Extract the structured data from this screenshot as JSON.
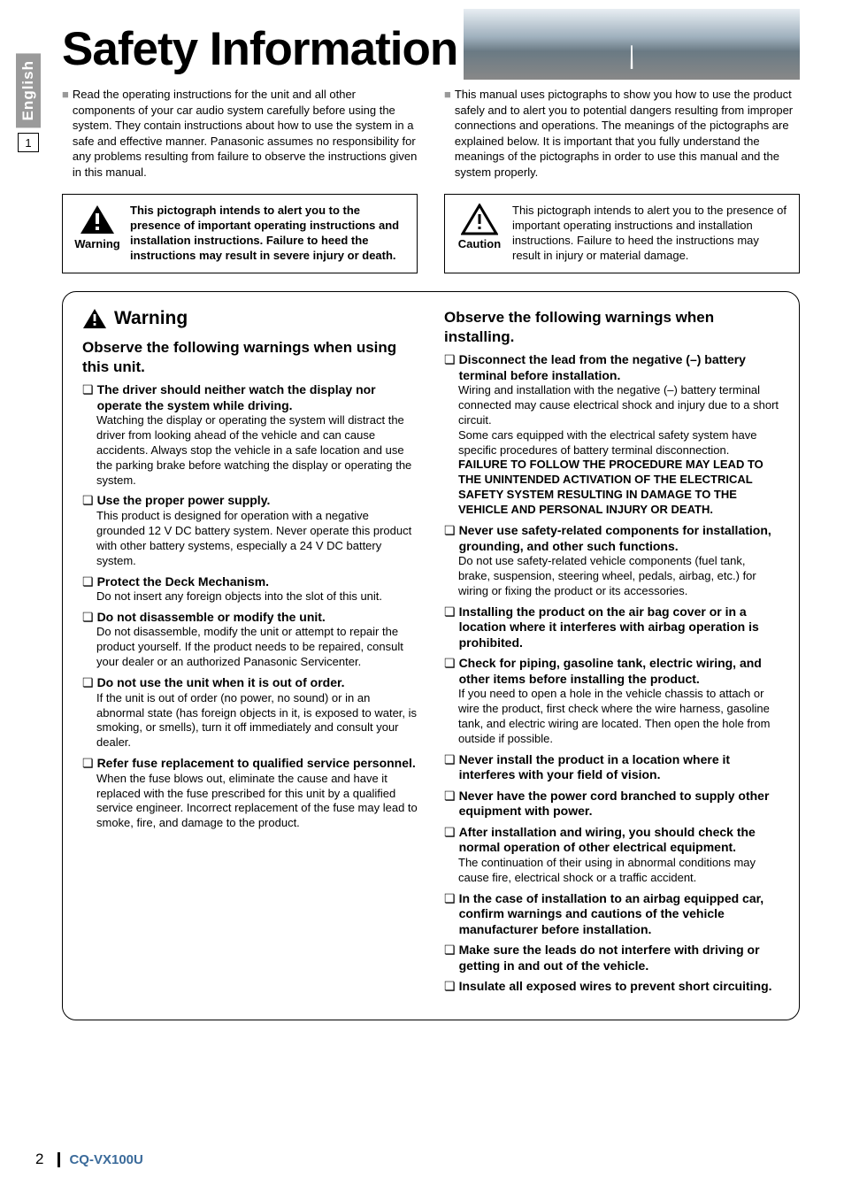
{
  "sideTab": {
    "lang": "English",
    "pageNum": "1"
  },
  "title": "Safety Information",
  "intro": {
    "left": "Read the operating instructions for the unit and all other components of your car audio system carefully before using the system. They contain instructions about how to use the system in a safe and effective manner. Panasonic assumes no responsibility for any problems resulting from failure to observe the instructions given in this manual.",
    "right": "This manual uses pictographs to show you how to use the product safely and to alert you to potential dangers resulting from improper connections and operations. The meanings of the pictographs are explained below. It is important that you fully understand the meanings of the pictographs in order to use this manual and the system properly."
  },
  "pictoWarning": {
    "label": "Warning",
    "text": "This pictograph intends to alert you to the presence of important operating instructions and installation instructions. Failure to heed the instructions may result in severe injury or death."
  },
  "pictoCaution": {
    "label": "Caution",
    "text": "This pictograph intends to alert you to the presence of important operating instructions and installation instructions. Failure to heed the instructions may result in injury or material damage."
  },
  "warningHeader": "Warning",
  "sectionUsing": {
    "heading": "Observe the following warnings when using this unit.",
    "items": [
      {
        "title": "The driver should neither watch the display nor operate the system while driving.",
        "body": "Watching the display or operating the system will distract the driver from looking ahead of the vehicle and can cause accidents. Always stop the vehicle in a safe location and use the parking brake before watching the display or operating the system."
      },
      {
        "title": "Use the proper power supply.",
        "body": "This product is designed for operation with a negative grounded 12 V DC battery system. Never operate this product with other battery systems, especially a 24 V DC battery system."
      },
      {
        "title": "Protect the Deck Mechanism.",
        "body": "Do not insert any foreign objects into the slot of this unit."
      },
      {
        "title": "Do not disassemble or modify the unit.",
        "body": "Do not disassemble, modify the unit or attempt to repair the product yourself. If the product needs to be repaired, consult your dealer or an authorized Panasonic Servicenter."
      },
      {
        "title": "Do not use the unit when it is out of order.",
        "body": "If the unit is out of order (no power, no sound) or in an abnormal state (has foreign objects in it, is exposed to water, is smoking, or smells), turn it off immediately and consult your dealer."
      },
      {
        "title": "Refer fuse replacement to qualified service personnel.",
        "body": "When the fuse blows out, eliminate the cause and have it replaced with the fuse prescribed for this unit by a qualified service engineer. Incorrect replacement of the fuse may lead to smoke, fire, and damage to the product."
      }
    ]
  },
  "sectionInstalling": {
    "heading": "Observe the following warnings when installing.",
    "items": [
      {
        "title": "Disconnect the lead from the negative (–) battery terminal before installation.",
        "body": "Wiring and installation with the negative (–) battery terminal connected may cause electrical shock and injury due to a short circuit.\nSome cars equipped with the electrical safety system have specific procedures of battery terminal disconnection.",
        "bodyBold": "FAILURE TO FOLLOW THE PROCEDURE MAY LEAD TO THE UNINTENDED ACTIVATION OF THE ELECTRICAL SAFETY SYSTEM RESULTING IN DAMAGE TO THE VEHICLE AND PERSONAL INJURY OR DEATH."
      },
      {
        "title": "Never use safety-related components for installation, grounding, and other such functions.",
        "body": "Do not use safety-related vehicle components (fuel tank, brake, suspension, steering wheel, pedals, airbag, etc.) for wiring or fixing the product or its accessories."
      },
      {
        "title": "Installing the product on the air bag cover or in a location where it interferes with airbag operation is prohibited.",
        "body": ""
      },
      {
        "title": "Check for piping, gasoline tank, electric wiring, and other items before installing the product.",
        "body": "If you need to open a hole in the vehicle chassis to attach or wire the product, first check where the wire harness, gasoline tank, and electric wiring are located. Then open the hole from outside if possible."
      },
      {
        "title": "Never install the product in a location where it interferes with your field of vision.",
        "body": ""
      },
      {
        "title": "Never have the power cord branched to supply other equipment with power.",
        "body": ""
      },
      {
        "title": "After installation and wiring, you should check the normal operation of other electrical equipment.",
        "body": "The continuation of their using in abnormal conditions may cause fire, electrical shock or a traffic accident."
      },
      {
        "title": "In the case of installation to an airbag equipped car, confirm warnings and cautions of the vehicle manufacturer before installation.",
        "body": ""
      },
      {
        "title": "Make sure the leads do not interfere with driving or getting in and out of the vehicle.",
        "body": ""
      },
      {
        "title": "Insulate all exposed wires to prevent short circuiting.",
        "body": ""
      }
    ]
  },
  "footer": {
    "pageNum": "2",
    "model": "CQ-VX100U"
  },
  "colors": {
    "sideTabBg": "#9a9a9a",
    "modelColor": "#3a6a9a",
    "squareBullet": "#999999",
    "text": "#000000",
    "background": "#ffffff"
  }
}
